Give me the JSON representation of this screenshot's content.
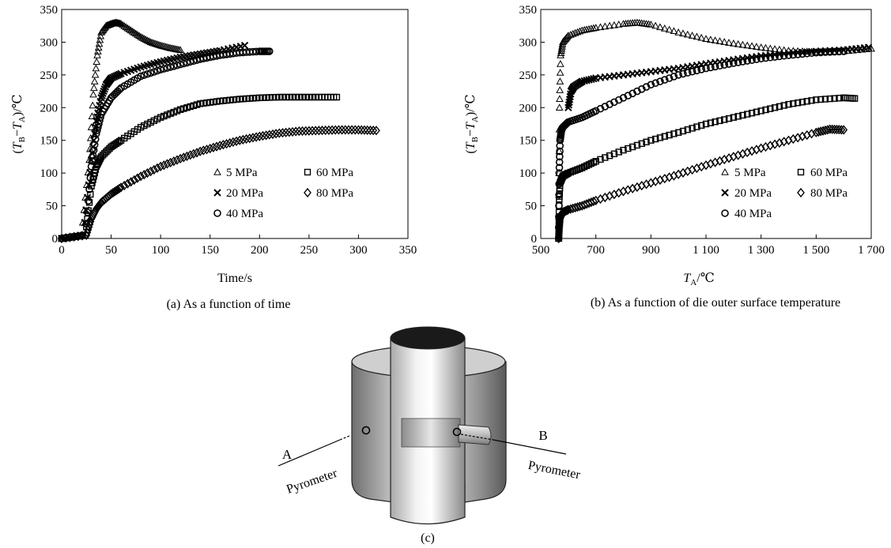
{
  "panel_a": {
    "caption": "(a) As a function of time",
    "xlabel": "Time/s",
    "ylabel_parts": [
      "(",
      "T",
      "B",
      "−",
      "T",
      "A",
      ")/℃"
    ],
    "x_ticks": [
      "0",
      "50",
      "100",
      "150",
      "200",
      "250",
      "300",
      "350"
    ],
    "y_ticks": [
      "0",
      "50",
      "100",
      "150",
      "200",
      "250",
      "300",
      "350"
    ]
  },
  "panel_b": {
    "caption": "(b) As a function of die outer surface temperature",
    "xlabel_parts": [
      "T",
      "A",
      "/℃"
    ],
    "ylabel_parts": [
      "(",
      "T",
      "B",
      "−",
      "T",
      "A",
      ")/℃"
    ],
    "x_ticks": [
      "500",
      "700",
      "900",
      "1 100",
      "1 300",
      "1 500",
      "1 700"
    ],
    "y_ticks": [
      "0",
      "50",
      "100",
      "150",
      "200",
      "250",
      "300",
      "350"
    ]
  },
  "legend": {
    "s5": "5 MPa",
    "s20": "20 MPa",
    "s40": "40 MPa",
    "s60": "60 MPa",
    "s80": "80 MPa"
  },
  "diagram": {
    "caption": "(c)",
    "label_a": "A",
    "label_b": "B",
    "pyrometer_a": "Pyrometer",
    "pyrometer_b": "Pyrometer"
  },
  "chart_data": [
    {
      "type": "scatter",
      "xlim": [
        0,
        350
      ],
      "ylim": [
        0,
        350
      ],
      "grid": false,
      "legend_placement": "bottom-right",
      "series": [
        {
          "name": "5 MPa",
          "marker": "triangle",
          "x": [
            0,
            20,
            28,
            32,
            36,
            40,
            45,
            50,
            55,
            60,
            70,
            80,
            90,
            100,
            110,
            120
          ],
          "y": [
            0,
            5,
            120,
            220,
            280,
            315,
            325,
            328,
            330,
            328,
            318,
            308,
            300,
            295,
            291,
            288
          ]
        },
        {
          "name": "20 MPa",
          "marker": "x",
          "x": [
            0,
            22,
            30,
            35,
            40,
            45,
            50,
            60,
            80,
            100,
            120,
            140,
            160,
            185
          ],
          "y": [
            0,
            5,
            120,
            180,
            215,
            235,
            245,
            252,
            262,
            270,
            277,
            282,
            287,
            295
          ]
        },
        {
          "name": "40 MPa",
          "marker": "circle",
          "x": [
            0,
            24,
            30,
            35,
            40,
            50,
            60,
            80,
            100,
            120,
            140,
            160,
            180,
            200,
            210
          ],
          "y": [
            0,
            5,
            110,
            160,
            190,
            215,
            230,
            248,
            258,
            266,
            274,
            280,
            284,
            286,
            286
          ]
        },
        {
          "name": "60 MPa",
          "marker": "square",
          "x": [
            0,
            24,
            30,
            35,
            40,
            50,
            60,
            80,
            100,
            120,
            140,
            160,
            180,
            200,
            220,
            240,
            260,
            278
          ],
          "y": [
            0,
            5,
            80,
            110,
            125,
            140,
            150,
            170,
            185,
            197,
            206,
            210,
            213,
            215,
            216,
            216,
            216,
            216
          ]
        },
        {
          "name": "80 MPa",
          "marker": "diamond",
          "x": [
            0,
            25,
            30,
            35,
            40,
            50,
            60,
            80,
            100,
            120,
            140,
            160,
            180,
            200,
            220,
            240,
            260,
            280,
            300,
            318
          ],
          "y": [
            0,
            5,
            30,
            45,
            55,
            68,
            78,
            95,
            110,
            122,
            133,
            142,
            150,
            156,
            161,
            164,
            165,
            166,
            166,
            165
          ]
        }
      ]
    },
    {
      "type": "scatter",
      "xlim": [
        500,
        1700
      ],
      "ylim": [
        0,
        350
      ],
      "grid": false,
      "legend_placement": "bottom-right",
      "series": [
        {
          "name": "5 MPa",
          "marker": "triangle",
          "x": [
            565,
            568,
            572,
            580,
            600,
            650,
            700,
            800,
            850,
            900,
            1000,
            1100,
            1200,
            1300,
            1400,
            1500,
            1600,
            1700
          ],
          "y": [
            0,
            200,
            280,
            300,
            310,
            318,
            322,
            328,
            330,
            327,
            315,
            305,
            298,
            292,
            287,
            285,
            286,
            290
          ]
        },
        {
          "name": "20 MPa",
          "marker": "x",
          "x": [
            600,
            610,
            620,
            650,
            700,
            800,
            900,
            1000,
            1100,
            1200,
            1300,
            1400,
            1500,
            1600,
            1690
          ],
          "y": [
            200,
            225,
            232,
            240,
            245,
            250,
            255,
            260,
            267,
            273,
            279,
            283,
            286,
            288,
            292
          ]
        },
        {
          "name": "40 MPa",
          "marker": "circle",
          "x": [
            565,
            567,
            570,
            575,
            580,
            600,
            650,
            700,
            800,
            900,
            1000,
            1100,
            1200,
            1300,
            1400,
            1500,
            1600
          ],
          "y": [
            0,
            100,
            150,
            165,
            170,
            178,
            185,
            195,
            215,
            235,
            250,
            260,
            268,
            275,
            280,
            284,
            286
          ]
        },
        {
          "name": "60 MPa",
          "marker": "square",
          "x": [
            565,
            567,
            570,
            580,
            600,
            650,
            700,
            800,
            900,
            1000,
            1100,
            1200,
            1300,
            1400,
            1500,
            1600,
            1640
          ],
          "y": [
            0,
            60,
            85,
            95,
            100,
            108,
            118,
            135,
            150,
            162,
            175,
            185,
            195,
            205,
            212,
            215,
            214
          ]
        },
        {
          "name": "80 MPa",
          "marker": "diamond",
          "x": [
            565,
            567,
            570,
            580,
            600,
            650,
            700,
            800,
            900,
            1000,
            1100,
            1200,
            1300,
            1400,
            1500,
            1550,
            1600
          ],
          "y": [
            0,
            15,
            30,
            40,
            44,
            50,
            58,
            72,
            85,
            98,
            112,
            125,
            138,
            150,
            162,
            167,
            166
          ]
        }
      ]
    }
  ]
}
